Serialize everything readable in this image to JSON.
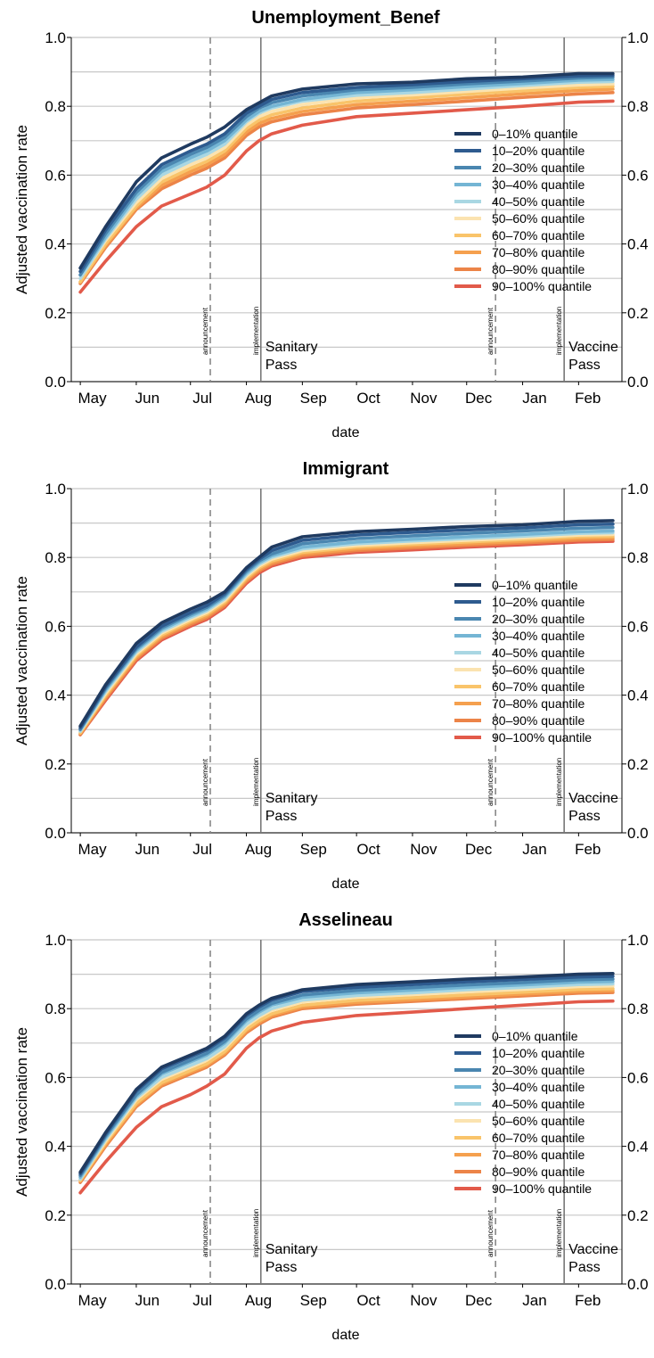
{
  "chart_data": [
    {
      "type": "line",
      "title": "Unemployment_Benef",
      "xlabel": "date",
      "ylabel": "Adjusted vaccination rate",
      "ylim": [
        0,
        1
      ],
      "y_ticks": [
        "0.0",
        "0.2",
        "0.4",
        "0.6",
        "0.8",
        "1.0"
      ],
      "x_ticks": [
        "May",
        "Jun",
        "Jul",
        "Aug",
        "Sep",
        "Oct",
        "Nov",
        "Dec",
        "Jan",
        "Feb"
      ],
      "grid": true,
      "legend_position": "right",
      "x": [
        "2021-05-01",
        "2021-05-15",
        "2021-06-01",
        "2021-06-15",
        "2021-07-01",
        "2021-07-10",
        "2021-07-20",
        "2021-08-01",
        "2021-08-08",
        "2021-08-15",
        "2021-09-01",
        "2021-10-01",
        "2021-11-01",
        "2021-12-01",
        "2022-01-01",
        "2022-02-01",
        "2022-02-20"
      ],
      "series": [
        {
          "name": "0–10% quantile",
          "color": "#1f3a60",
          "values": [
            0.33,
            0.45,
            0.58,
            0.65,
            0.69,
            0.71,
            0.74,
            0.79,
            0.81,
            0.83,
            0.85,
            0.865,
            0.87,
            0.88,
            0.885,
            0.895,
            0.895
          ]
        },
        {
          "name": "10–20% quantile",
          "color": "#2e5b8f",
          "values": [
            0.32,
            0.44,
            0.56,
            0.63,
            0.67,
            0.69,
            0.72,
            0.78,
            0.8,
            0.82,
            0.84,
            0.855,
            0.863,
            0.872,
            0.88,
            0.888,
            0.89
          ]
        },
        {
          "name": "20–30% quantile",
          "color": "#4a86b0",
          "values": [
            0.31,
            0.43,
            0.55,
            0.62,
            0.66,
            0.68,
            0.71,
            0.77,
            0.795,
            0.81,
            0.83,
            0.848,
            0.855,
            0.865,
            0.873,
            0.882,
            0.885
          ]
        },
        {
          "name": "30–40% quantile",
          "color": "#74b5d4",
          "values": [
            0.31,
            0.42,
            0.54,
            0.61,
            0.65,
            0.67,
            0.7,
            0.76,
            0.785,
            0.8,
            0.82,
            0.84,
            0.848,
            0.857,
            0.866,
            0.876,
            0.878
          ]
        },
        {
          "name": "40–50% quantile",
          "color": "#a9d7e3",
          "values": [
            0.3,
            0.415,
            0.53,
            0.6,
            0.64,
            0.66,
            0.69,
            0.755,
            0.78,
            0.795,
            0.815,
            0.832,
            0.84,
            0.85,
            0.86,
            0.87,
            0.872
          ]
        },
        {
          "name": "50–60% quantile",
          "color": "#fbe3b0",
          "values": [
            0.3,
            0.41,
            0.52,
            0.59,
            0.63,
            0.65,
            0.68,
            0.745,
            0.77,
            0.785,
            0.805,
            0.825,
            0.833,
            0.843,
            0.853,
            0.862,
            0.865
          ]
        },
        {
          "name": "60–70% quantile",
          "color": "#f9c46a",
          "values": [
            0.29,
            0.4,
            0.51,
            0.58,
            0.62,
            0.64,
            0.67,
            0.735,
            0.76,
            0.775,
            0.795,
            0.815,
            0.825,
            0.835,
            0.845,
            0.855,
            0.858
          ]
        },
        {
          "name": "70–80% quantile",
          "color": "#f5a04e",
          "values": [
            0.29,
            0.395,
            0.505,
            0.57,
            0.61,
            0.63,
            0.66,
            0.725,
            0.75,
            0.765,
            0.785,
            0.805,
            0.815,
            0.825,
            0.836,
            0.846,
            0.85
          ]
        },
        {
          "name": "80–90% quantile",
          "color": "#ec8448",
          "values": [
            0.285,
            0.39,
            0.5,
            0.56,
            0.6,
            0.62,
            0.65,
            0.715,
            0.74,
            0.755,
            0.775,
            0.795,
            0.805,
            0.815,
            0.826,
            0.836,
            0.84
          ]
        },
        {
          "name": "90–100% quantile",
          "color": "#e25a4a",
          "values": [
            0.26,
            0.35,
            0.45,
            0.51,
            0.545,
            0.565,
            0.6,
            0.67,
            0.7,
            0.72,
            0.745,
            0.77,
            0.78,
            0.79,
            0.8,
            0.812,
            0.815
          ]
        }
      ],
      "vlines": [
        {
          "date": "2021-07-12",
          "style": "dashed",
          "label": "announcement"
        },
        {
          "date": "2021-08-09",
          "style": "solid",
          "label": "implementation",
          "annotation": [
            "Sanitary",
            "Pass"
          ]
        },
        {
          "date": "2021-12-17",
          "style": "dashed",
          "label": "announcement"
        },
        {
          "date": "2022-01-24",
          "style": "solid",
          "label": "implementation",
          "annotation": [
            "Vaccine",
            "Pass"
          ]
        }
      ]
    },
    {
      "type": "line",
      "title": "Immigrant",
      "xlabel": "date",
      "ylabel": "Adjusted vaccination rate",
      "ylim": [
        0,
        1
      ],
      "y_ticks": [
        "0.0",
        "0.2",
        "0.4",
        "0.6",
        "0.8",
        "1.0"
      ],
      "x_ticks": [
        "May",
        "Jun",
        "Jul",
        "Aug",
        "Sep",
        "Oct",
        "Nov",
        "Dec",
        "Jan",
        "Feb"
      ],
      "grid": true,
      "legend_position": "right",
      "x": [
        "2021-05-01",
        "2021-05-15",
        "2021-06-01",
        "2021-06-15",
        "2021-07-01",
        "2021-07-10",
        "2021-07-20",
        "2021-08-01",
        "2021-08-08",
        "2021-08-15",
        "2021-09-01",
        "2021-10-01",
        "2021-11-01",
        "2021-12-01",
        "2022-01-01",
        "2022-02-01",
        "2022-02-20"
      ],
      "series": [
        {
          "name": "0–10% quantile",
          "color": "#1f3a60",
          "values": [
            0.31,
            0.43,
            0.55,
            0.61,
            0.65,
            0.67,
            0.7,
            0.77,
            0.8,
            0.83,
            0.86,
            0.875,
            0.882,
            0.89,
            0.895,
            0.905,
            0.907
          ]
        },
        {
          "name": "10–20% quantile",
          "color": "#2e5b8f",
          "values": [
            0.305,
            0.425,
            0.54,
            0.6,
            0.64,
            0.66,
            0.695,
            0.765,
            0.795,
            0.82,
            0.85,
            0.865,
            0.873,
            0.88,
            0.886,
            0.895,
            0.897
          ]
        },
        {
          "name": "20–30% quantile",
          "color": "#4a86b0",
          "values": [
            0.3,
            0.42,
            0.535,
            0.595,
            0.635,
            0.655,
            0.69,
            0.76,
            0.79,
            0.81,
            0.84,
            0.855,
            0.863,
            0.87,
            0.877,
            0.885,
            0.887
          ]
        },
        {
          "name": "30–40% quantile",
          "color": "#74b5d4",
          "values": [
            0.3,
            0.415,
            0.53,
            0.59,
            0.63,
            0.65,
            0.685,
            0.755,
            0.785,
            0.805,
            0.83,
            0.845,
            0.853,
            0.86,
            0.867,
            0.875,
            0.877
          ]
        },
        {
          "name": "40–50% quantile",
          "color": "#a9d7e3",
          "values": [
            0.295,
            0.41,
            0.525,
            0.585,
            0.625,
            0.645,
            0.68,
            0.75,
            0.78,
            0.8,
            0.825,
            0.84,
            0.848,
            0.855,
            0.862,
            0.87,
            0.872
          ]
        },
        {
          "name": "50–60% quantile",
          "color": "#fbe3b0",
          "values": [
            0.295,
            0.405,
            0.52,
            0.58,
            0.62,
            0.64,
            0.675,
            0.745,
            0.775,
            0.795,
            0.82,
            0.835,
            0.843,
            0.85,
            0.857,
            0.865,
            0.867
          ]
        },
        {
          "name": "60–70% quantile",
          "color": "#f9c46a",
          "values": [
            0.29,
            0.4,
            0.515,
            0.575,
            0.615,
            0.635,
            0.67,
            0.74,
            0.77,
            0.79,
            0.815,
            0.83,
            0.838,
            0.845,
            0.852,
            0.86,
            0.862
          ]
        },
        {
          "name": "70–80% quantile",
          "color": "#f5a04e",
          "values": [
            0.29,
            0.395,
            0.51,
            0.57,
            0.61,
            0.63,
            0.665,
            0.735,
            0.765,
            0.785,
            0.81,
            0.825,
            0.833,
            0.84,
            0.847,
            0.855,
            0.857
          ]
        },
        {
          "name": "80–90% quantile",
          "color": "#ec8448",
          "values": [
            0.285,
            0.39,
            0.505,
            0.565,
            0.605,
            0.625,
            0.66,
            0.73,
            0.76,
            0.78,
            0.805,
            0.82,
            0.828,
            0.835,
            0.842,
            0.85,
            0.852
          ]
        },
        {
          "name": "90–100% quantile",
          "color": "#e25a4a",
          "values": [
            0.285,
            0.385,
            0.5,
            0.56,
            0.6,
            0.62,
            0.655,
            0.725,
            0.755,
            0.775,
            0.8,
            0.815,
            0.822,
            0.83,
            0.837,
            0.845,
            0.847
          ]
        }
      ],
      "vlines": [
        {
          "date": "2021-07-12",
          "style": "dashed",
          "label": "announcement"
        },
        {
          "date": "2021-08-09",
          "style": "solid",
          "label": "implementation",
          "annotation": [
            "Sanitary",
            "Pass"
          ]
        },
        {
          "date": "2021-12-17",
          "style": "dashed",
          "label": "announcement"
        },
        {
          "date": "2022-01-24",
          "style": "solid",
          "label": "implementation",
          "annotation": [
            "Vaccine",
            "Pass"
          ]
        }
      ]
    },
    {
      "type": "line",
      "title": "Asselineau",
      "xlabel": "date",
      "ylabel": "Adjusted vaccination rate",
      "ylim": [
        0,
        1
      ],
      "y_ticks": [
        "0.0",
        "0.2",
        "0.4",
        "0.6",
        "0.8",
        "1.0"
      ],
      "x_ticks": [
        "May",
        "Jun",
        "Jul",
        "Aug",
        "Sep",
        "Oct",
        "Nov",
        "Dec",
        "Jan",
        "Feb"
      ],
      "grid": true,
      "legend_position": "right",
      "x": [
        "2021-05-01",
        "2021-05-15",
        "2021-06-01",
        "2021-06-15",
        "2021-07-01",
        "2021-07-10",
        "2021-07-20",
        "2021-08-01",
        "2021-08-08",
        "2021-08-15",
        "2021-09-01",
        "2021-10-01",
        "2021-11-01",
        "2021-12-01",
        "2022-01-01",
        "2022-02-01",
        "2022-02-20"
      ],
      "series": [
        {
          "name": "0–10% quantile",
          "color": "#1f3a60",
          "values": [
            0.325,
            0.44,
            0.565,
            0.63,
            0.665,
            0.685,
            0.72,
            0.785,
            0.81,
            0.83,
            0.855,
            0.87,
            0.878,
            0.886,
            0.892,
            0.9,
            0.902
          ]
        },
        {
          "name": "10–20% quantile",
          "color": "#2e5b8f",
          "values": [
            0.32,
            0.435,
            0.56,
            0.625,
            0.66,
            0.68,
            0.715,
            0.78,
            0.805,
            0.825,
            0.85,
            0.862,
            0.87,
            0.878,
            0.885,
            0.892,
            0.894
          ]
        },
        {
          "name": "20–30% quantile",
          "color": "#4a86b0",
          "values": [
            0.315,
            0.43,
            0.55,
            0.615,
            0.65,
            0.67,
            0.705,
            0.77,
            0.795,
            0.815,
            0.84,
            0.853,
            0.861,
            0.869,
            0.876,
            0.884,
            0.886
          ]
        },
        {
          "name": "30–40% quantile",
          "color": "#74b5d4",
          "values": [
            0.31,
            0.425,
            0.545,
            0.61,
            0.645,
            0.665,
            0.7,
            0.765,
            0.79,
            0.81,
            0.833,
            0.846,
            0.854,
            0.862,
            0.869,
            0.877,
            0.879
          ]
        },
        {
          "name": "40–50% quantile",
          "color": "#a9d7e3",
          "values": [
            0.305,
            0.42,
            0.54,
            0.6,
            0.635,
            0.655,
            0.69,
            0.755,
            0.78,
            0.8,
            0.825,
            0.838,
            0.846,
            0.855,
            0.862,
            0.87,
            0.872
          ]
        },
        {
          "name": "50–60% quantile",
          "color": "#fbe3b0",
          "values": [
            0.305,
            0.415,
            0.535,
            0.595,
            0.63,
            0.65,
            0.685,
            0.75,
            0.775,
            0.795,
            0.82,
            0.833,
            0.841,
            0.849,
            0.856,
            0.864,
            0.866
          ]
        },
        {
          "name": "60–70% quantile",
          "color": "#f9c46a",
          "values": [
            0.3,
            0.41,
            0.525,
            0.585,
            0.62,
            0.64,
            0.675,
            0.74,
            0.765,
            0.785,
            0.81,
            0.824,
            0.832,
            0.84,
            0.848,
            0.856,
            0.858
          ]
        },
        {
          "name": "70–80% quantile",
          "color": "#f5a04e",
          "values": [
            0.3,
            0.405,
            0.52,
            0.58,
            0.615,
            0.635,
            0.67,
            0.735,
            0.76,
            0.78,
            0.805,
            0.818,
            0.826,
            0.834,
            0.842,
            0.85,
            0.852
          ]
        },
        {
          "name": "80–90% quantile",
          "color": "#ec8448",
          "values": [
            0.295,
            0.4,
            0.515,
            0.575,
            0.61,
            0.63,
            0.665,
            0.73,
            0.755,
            0.775,
            0.8,
            0.813,
            0.821,
            0.829,
            0.837,
            0.845,
            0.847
          ]
        },
        {
          "name": "90–100% quantile",
          "color": "#e25a4a",
          "values": [
            0.265,
            0.355,
            0.455,
            0.515,
            0.55,
            0.575,
            0.61,
            0.685,
            0.715,
            0.735,
            0.76,
            0.78,
            0.79,
            0.8,
            0.81,
            0.82,
            0.822
          ]
        }
      ],
      "vlines": [
        {
          "date": "2021-07-12",
          "style": "dashed",
          "label": "announcement"
        },
        {
          "date": "2021-08-09",
          "style": "solid",
          "label": "implementation",
          "annotation": [
            "Sanitary",
            "Pass"
          ]
        },
        {
          "date": "2021-12-17",
          "style": "dashed",
          "label": "announcement"
        },
        {
          "date": "2022-01-24",
          "style": "solid",
          "label": "implementation",
          "annotation": [
            "Vaccine",
            "Pass"
          ]
        }
      ]
    }
  ]
}
